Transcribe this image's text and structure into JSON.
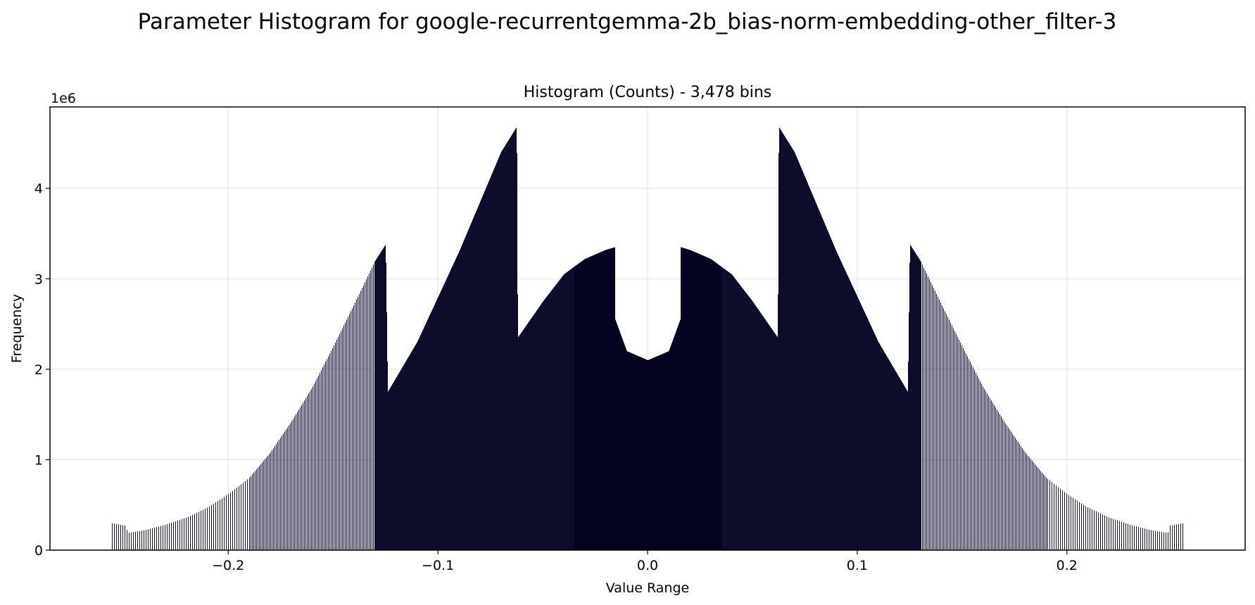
{
  "chart_data": {
    "type": "bar",
    "suptitle": "Parameter Histogram for google-recurrentgemma-2b_bias-norm-embedding-other_filter-3",
    "title": "Histogram (Counts) - 3,478 bins",
    "xlabel": "Value Range",
    "ylabel": "Frequency",
    "y_offset_label": "1e6",
    "xlim": [
      -0.285,
      0.285
    ],
    "ylim": [
      0,
      4.9
    ],
    "x_ticks": [
      -0.2,
      -0.1,
      0.0,
      0.1,
      0.2
    ],
    "x_tick_labels": [
      "−0.2",
      "−0.1",
      "0.0",
      "0.1",
      "0.2"
    ],
    "y_ticks": [
      0,
      1,
      2,
      3,
      4
    ],
    "y_tick_labels": [
      "0",
      "1",
      "2",
      "3",
      "4"
    ],
    "grid": true,
    "bar_color": "#0d0d2b",
    "envelope": {
      "x": [
        0.0,
        0.005,
        0.01,
        0.0155,
        0.0156,
        0.02,
        0.03,
        0.04,
        0.05,
        0.062,
        0.0625,
        0.07,
        0.08,
        0.09,
        0.1,
        0.11,
        0.124,
        0.125,
        0.13,
        0.14,
        0.15,
        0.16,
        0.17,
        0.18,
        0.19,
        0.2,
        0.21,
        0.22,
        0.23,
        0.24,
        0.248,
        0.249,
        0.256
      ],
      "y": [
        2.1,
        2.15,
        2.2,
        2.55,
        3.35,
        3.32,
        3.22,
        3.05,
        2.75,
        2.35,
        4.68,
        4.4,
        3.85,
        3.3,
        2.8,
        2.3,
        1.75,
        3.38,
        3.2,
        2.72,
        2.25,
        1.8,
        1.42,
        1.08,
        0.8,
        0.62,
        0.47,
        0.36,
        0.28,
        0.22,
        0.19,
        0.27,
        0.3
      ]
    }
  }
}
